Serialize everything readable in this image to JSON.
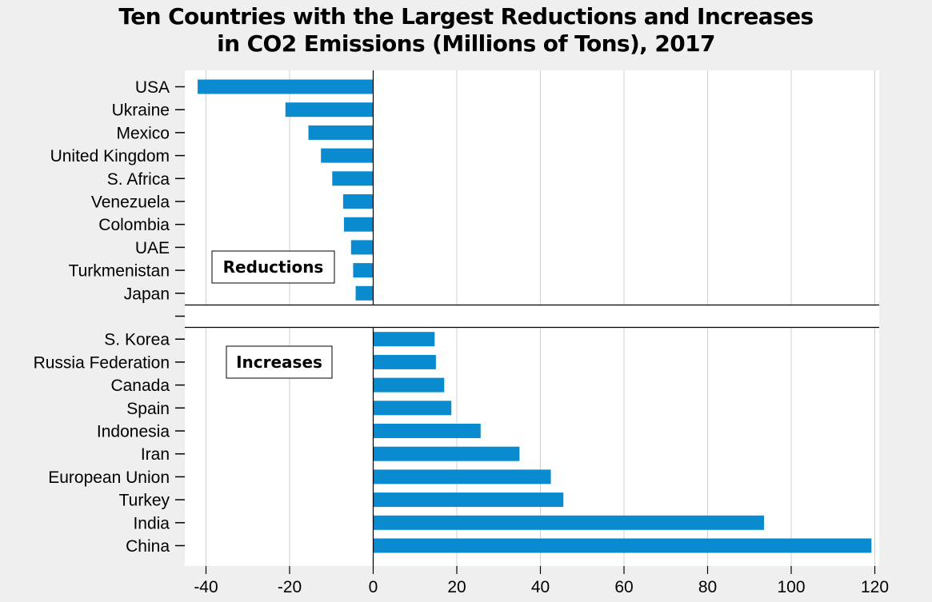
{
  "chart_data": {
    "type": "bar",
    "orientation": "horizontal",
    "title_line1": "Ten Countries with the Largest Reductions and Increases",
    "title_line2": "in CO2 Emissions (Millions of Tons), 2017",
    "xlim": [
      -45,
      120
    ],
    "x_ticks": [
      -40,
      -20,
      0,
      20,
      40,
      60,
      80,
      100,
      120
    ],
    "grid": "vertical",
    "bar_color": "#0a8bcf",
    "groups": [
      {
        "label": "Reductions",
        "categories": [
          "USA",
          "Ukraine",
          "Mexico",
          "United Kingdom",
          "S. Africa",
          "Venezuela",
          "Colombia",
          "UAE",
          "Turkmenistan",
          "Japan"
        ],
        "values": [
          -42,
          -21,
          -15.5,
          -12.5,
          -9.8,
          -7.2,
          -7,
          -5.3,
          -4.8,
          -4.2
        ]
      },
      {
        "label": "Increases",
        "categories": [
          "S. Korea",
          "Russia Federation",
          "Canada",
          "Spain",
          "Indonesia",
          "Iran",
          "European Union",
          "Turkey",
          "India",
          "China"
        ],
        "values": [
          14.7,
          15,
          17,
          18.7,
          25.7,
          35,
          42.5,
          45.5,
          93.5,
          119.2
        ]
      }
    ]
  }
}
